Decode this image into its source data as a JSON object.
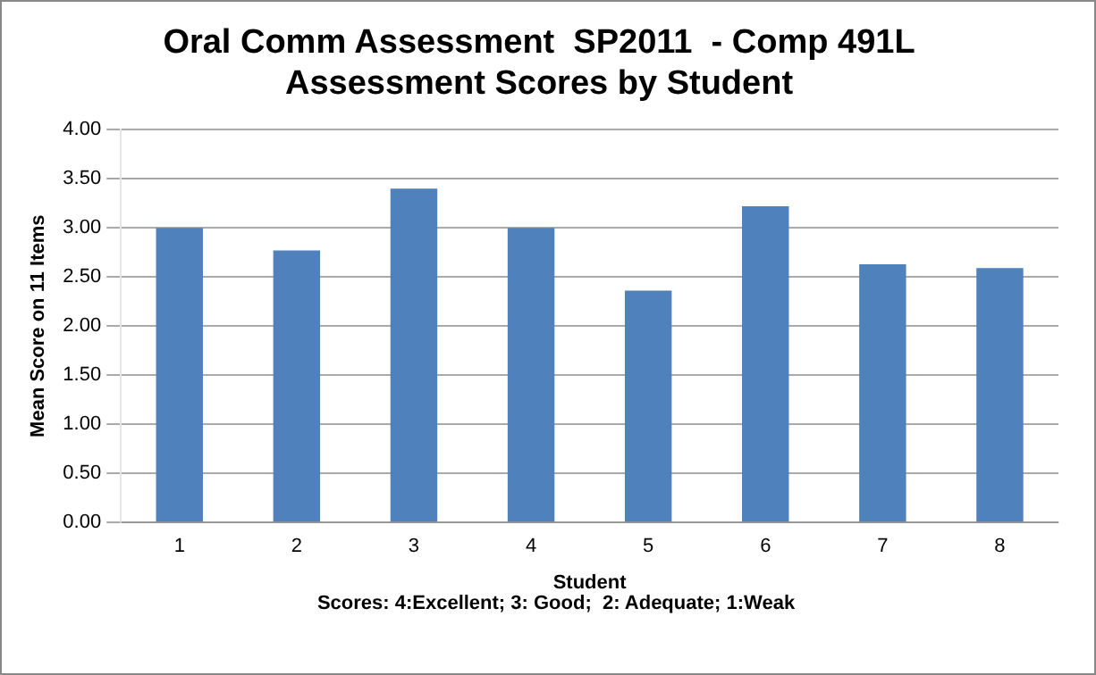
{
  "chart_data": {
    "type": "bar",
    "title": [
      "Oral Comm Assessment  SP2011  - Comp 491L",
      "Assessment Scores by Student"
    ],
    "xlabel": "Student",
    "ylabel": "Mean Score on 11 Items",
    "categories": [
      "1",
      "2",
      "3",
      "4",
      "5",
      "6",
      "7",
      "8"
    ],
    "values": [
      3.0,
      2.77,
      3.4,
      3.0,
      2.36,
      3.22,
      2.63,
      2.59
    ],
    "color": "#4f81bd",
    "ylim": [
      0,
      4
    ],
    "yticks": [
      {
        "value": 0,
        "label": "0.00"
      },
      {
        "value": 0.5,
        "label": "0.50"
      },
      {
        "value": 1,
        "label": "1.00"
      },
      {
        "value": 1.5,
        "label": "1.50"
      },
      {
        "value": 2,
        "label": "2.00"
      },
      {
        "value": 2.5,
        "label": "2.50"
      },
      {
        "value": 3,
        "label": "3.00"
      },
      {
        "value": 3.5,
        "label": "3.50"
      },
      {
        "value": 4,
        "label": "4.00"
      }
    ],
    "grid": "y",
    "annotations": [
      "Scores: 4:Excellent; 3: Good;  2: Adequate; 1:Weak"
    ]
  }
}
